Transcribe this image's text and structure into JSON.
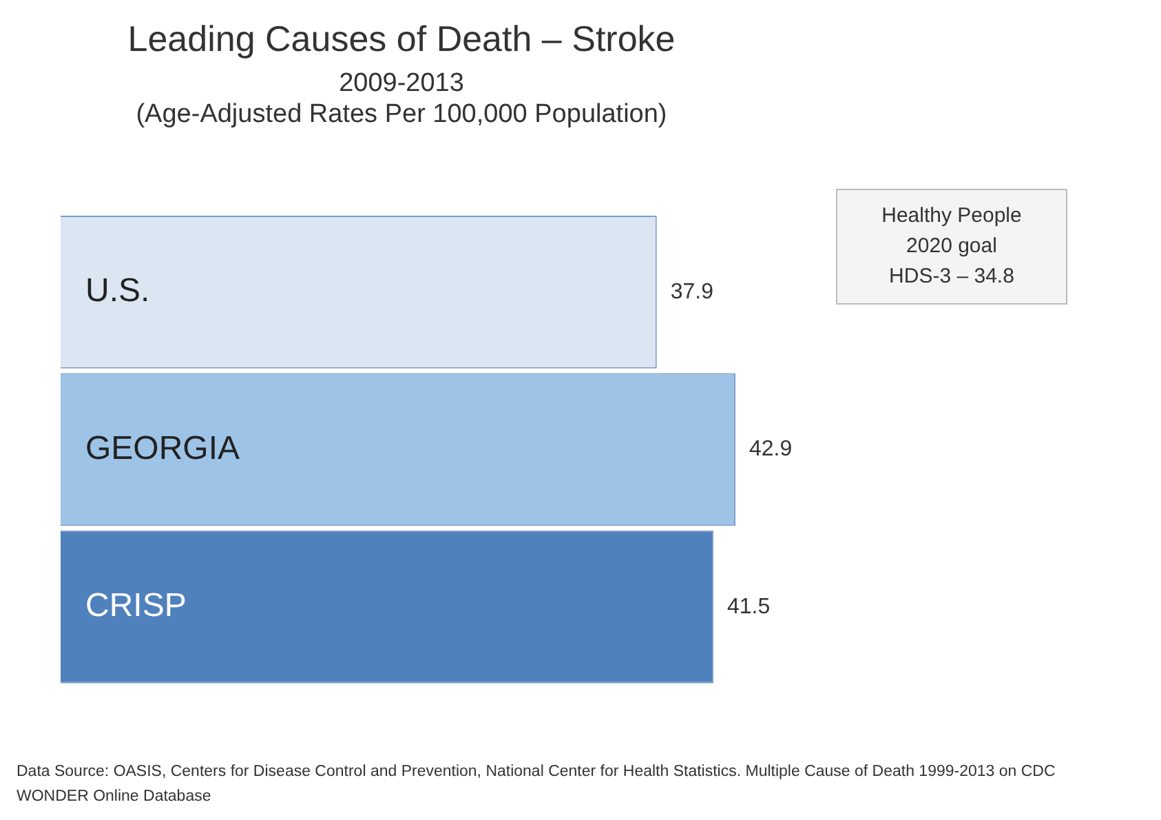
{
  "chart_data": {
    "type": "bar",
    "orientation": "horizontal",
    "title": "Leading Causes of Death – Stroke",
    "subtitle": "2009-2013\n(Age-Adjusted Rates Per 100,000 Population)",
    "categories": [
      "U.S.",
      "GEORGIA",
      "CRISP"
    ],
    "values": [
      37.9,
      42.9,
      41.5
    ],
    "colors": [
      "#dce6f2",
      "#9dc3e6",
      "#4f81bd"
    ],
    "data_labels": true,
    "legend": false,
    "annotations": [
      "Healthy People\n2020 goal\nHDS-3 – 34.8",
      "Data Source:  OASIS, Centers for Disease Control and Prevention, National Center for Health Statistics.  Multiple Cause of Death 1999-2013 on CDC WONDER Online Database"
    ]
  }
}
